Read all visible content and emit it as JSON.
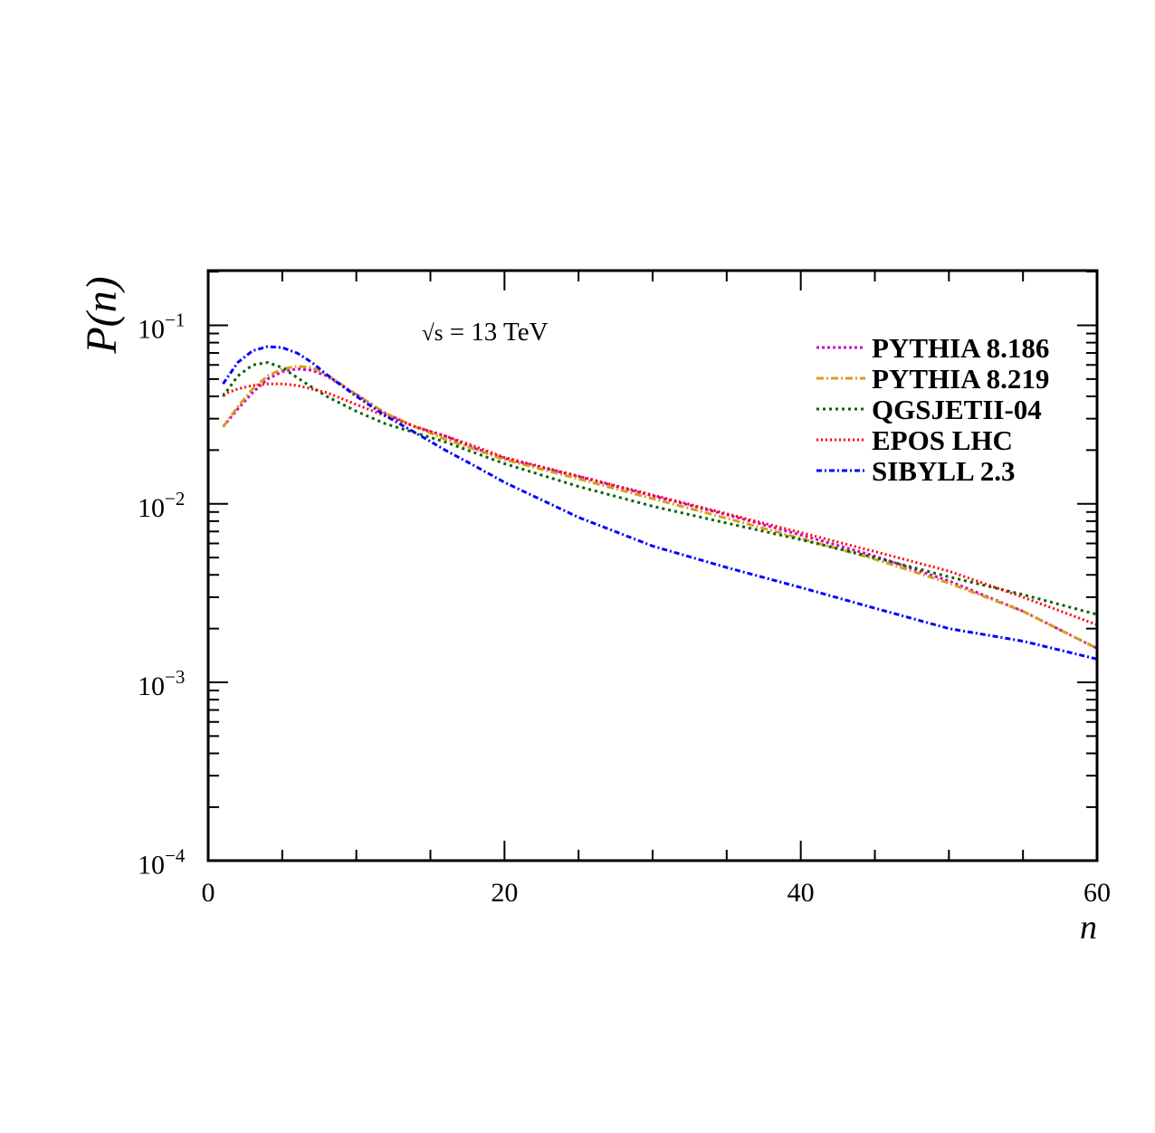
{
  "chart_data": {
    "type": "line",
    "title": "",
    "xlabel": "n",
    "ylabel": "P(n)",
    "xlim": [
      0,
      60
    ],
    "ylim": [
      0.0001,
      0.2
    ],
    "yscale": "log",
    "grid": false,
    "legend_position": "top-right",
    "annotation": {
      "prefix": "√s",
      "text": " = 13 TeV"
    },
    "x_ticks": [
      {
        "value": 0,
        "label": "0"
      },
      {
        "value": 20,
        "label": "20"
      },
      {
        "value": 40,
        "label": "40"
      },
      {
        "value": 60,
        "label": "60"
      }
    ],
    "y_ticks": [
      {
        "value": 0.1,
        "base": "10",
        "exp": "−1"
      },
      {
        "value": 0.01,
        "base": "10",
        "exp": "−2"
      },
      {
        "value": 0.001,
        "base": "10",
        "exp": "−3"
      },
      {
        "value": 0.0001,
        "base": "10",
        "exp": "−4"
      }
    ],
    "series": [
      {
        "name": "PYTHIA 8.186",
        "color": "#cc00cc",
        "dash": "3,3",
        "x": [
          1,
          2,
          3,
          4,
          5,
          6,
          7,
          8,
          10,
          12,
          14,
          16,
          18,
          20,
          25,
          30,
          35,
          40,
          45,
          50,
          55,
          60
        ],
        "y": [
          0.027,
          0.034,
          0.042,
          0.05,
          0.055,
          0.057,
          0.056,
          0.052,
          0.041,
          0.032,
          0.027,
          0.024,
          0.0205,
          0.018,
          0.0142,
          0.0111,
          0.0087,
          0.0067,
          0.0051,
          0.0037,
          0.0025,
          0.00155
        ]
      },
      {
        "name": "PYTHIA 8.219",
        "color": "#d4a017",
        "dash": "8,3,2,3",
        "x": [
          1,
          2,
          3,
          4,
          5,
          6,
          7,
          8,
          10,
          12,
          14,
          16,
          18,
          20,
          25,
          30,
          35,
          40,
          45,
          50,
          55,
          60
        ],
        "y": [
          0.027,
          0.035,
          0.044,
          0.052,
          0.057,
          0.059,
          0.058,
          0.053,
          0.041,
          0.032,
          0.027,
          0.023,
          0.0202,
          0.0177,
          0.0138,
          0.0107,
          0.0083,
          0.0064,
          0.0049,
          0.0036,
          0.0025,
          0.00155
        ]
      },
      {
        "name": "QGSJETII-04",
        "color": "#006400",
        "dash": "3,4",
        "x": [
          1,
          2,
          3,
          4,
          5,
          6,
          7,
          8,
          10,
          12,
          14,
          16,
          18,
          20,
          25,
          30,
          35,
          40,
          45,
          50,
          55,
          60
        ],
        "y": [
          0.04,
          0.052,
          0.06,
          0.062,
          0.058,
          0.051,
          0.045,
          0.04,
          0.033,
          0.028,
          0.025,
          0.0222,
          0.0193,
          0.0168,
          0.0125,
          0.0097,
          0.0078,
          0.0063,
          0.005,
          0.0039,
          0.0031,
          0.0024
        ]
      },
      {
        "name": "EPOS LHC",
        "color": "#ff0000",
        "dash": "2,3",
        "x": [
          1,
          2,
          3,
          4,
          5,
          6,
          7,
          8,
          10,
          12,
          14,
          16,
          18,
          20,
          25,
          30,
          35,
          40,
          45,
          50,
          55,
          60
        ],
        "y": [
          0.041,
          0.044,
          0.046,
          0.047,
          0.047,
          0.046,
          0.044,
          0.042,
          0.036,
          0.031,
          0.027,
          0.024,
          0.021,
          0.0182,
          0.0143,
          0.0112,
          0.0088,
          0.0069,
          0.0054,
          0.0042,
          0.003,
          0.0021
        ]
      },
      {
        "name": "SIBYLL 2.3",
        "color": "#0000ff",
        "dash": "6,3,2,3",
        "x": [
          1,
          2,
          3,
          4,
          5,
          6,
          7,
          8,
          10,
          12,
          14,
          16,
          18,
          20,
          25,
          30,
          35,
          40,
          45,
          50,
          55,
          60
        ],
        "y": [
          0.047,
          0.062,
          0.072,
          0.076,
          0.075,
          0.07,
          0.062,
          0.053,
          0.04,
          0.031,
          0.025,
          0.02,
          0.0163,
          0.0132,
          0.0084,
          0.0058,
          0.0044,
          0.0034,
          0.0026,
          0.002,
          0.0017,
          0.00135
        ]
      }
    ]
  }
}
